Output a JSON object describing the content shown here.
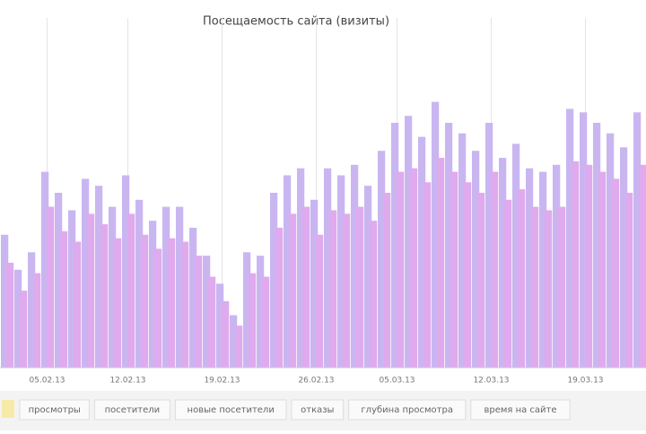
{
  "chart_data": {
    "type": "bar",
    "title": "Посещаемость сайта (визиты)",
    "categories": [
      null,
      null,
      null,
      "05.02.13",
      null,
      null,
      null,
      null,
      null,
      "12.02.13",
      null,
      null,
      null,
      null,
      null,
      null,
      "19.02.13",
      null,
      null,
      null,
      null,
      null,
      null,
      "26.02.13",
      null,
      null,
      null,
      null,
      null,
      "05.03.13",
      null,
      null,
      null,
      null,
      null,
      null,
      "12.03.13",
      null,
      null,
      null,
      null,
      null,
      null,
      "19.03.13",
      null,
      null,
      null,
      null
    ],
    "series": [
      {
        "color": "#c9b6f1",
        "values": [
          38,
          28,
          33,
          56,
          50,
          45,
          54,
          52,
          46,
          55,
          48,
          42,
          46,
          46,
          40,
          32,
          24,
          15,
          33,
          32,
          50,
          55,
          57,
          48,
          57,
          55,
          58,
          52,
          62,
          70,
          72,
          66,
          76,
          70,
          67,
          62,
          70,
          60,
          64,
          57,
          56,
          58,
          74,
          73,
          70,
          67,
          63,
          73
        ]
      },
      {
        "color": "#dfaaee",
        "values": [
          30,
          22,
          27,
          46,
          39,
          36,
          44,
          41,
          37,
          44,
          38,
          34,
          37,
          36,
          32,
          26,
          19,
          12,
          27,
          26,
          40,
          44,
          46,
          38,
          45,
          44,
          46,
          42,
          50,
          56,
          57,
          53,
          60,
          56,
          53,
          50,
          56,
          48,
          51,
          46,
          45,
          46,
          59,
          58,
          56,
          54,
          50,
          58
        ]
      }
    ],
    "ylim": [
      0,
      100
    ],
    "grid": true
  },
  "tabs": [
    "просмотры",
    "посетители",
    "новые посетители",
    "отказы",
    "глубина просмотра",
    "время на сайте"
  ]
}
